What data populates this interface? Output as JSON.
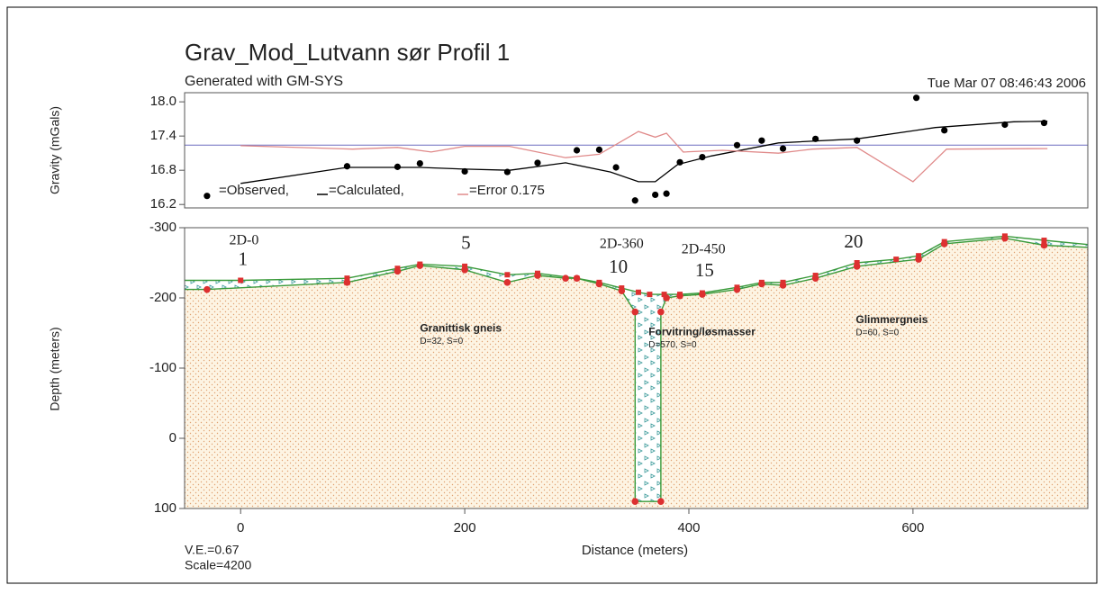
{
  "chart_data": [
    {
      "type": "line",
      "title": "Grav_Mod_Lutvann sør Profil 1",
      "subtitle": "Generated with GM-SYS",
      "date": "Tue Mar 07 08:46:43 2006",
      "ylabel": "Gravity (mGals)",
      "xlim": [
        -50,
        756
      ],
      "ylim": [
        16.14,
        18.16
      ],
      "yticks": [
        16.2,
        16.8,
        17.4,
        {
          "value": 18,
          "label": "18.0"
        }
      ],
      "reference_line": {
        "value": 17.24,
        "color": "#6f6fc0"
      },
      "series": [
        {
          "name": "=Observed,",
          "color": "#000000",
          "style": "markers",
          "x": [
            -30,
            95,
            140,
            160,
            200,
            238,
            265,
            300,
            320,
            335,
            352,
            370,
            380,
            392,
            412,
            443,
            465,
            484,
            513,
            550,
            603,
            628,
            682,
            717
          ],
          "values": [
            16.35,
            16.87,
            16.86,
            16.92,
            16.78,
            16.77,
            16.93,
            17.15,
            17.16,
            16.85,
            16.27,
            16.37,
            16.39,
            16.94,
            17.03,
            17.24,
            17.32,
            17.18,
            17.35,
            17.32,
            18.07,
            17.5,
            17.6,
            17.63
          ]
        },
        {
          "name": "=Calculated,",
          "color": "#000000",
          "style": "line",
          "x": [
            0,
            95,
            160,
            200,
            240,
            290,
            330,
            355,
            370,
            390,
            420,
            480,
            550,
            620,
            690,
            720
          ],
          "values": [
            16.57,
            16.85,
            16.85,
            16.82,
            16.8,
            16.93,
            16.77,
            16.6,
            16.6,
            16.9,
            17.05,
            17.28,
            17.35,
            17.55,
            17.65,
            17.66
          ]
        },
        {
          "name": "=Error 0.175",
          "color": "#e08a8a",
          "style": "line",
          "x": [
            0,
            100,
            140,
            170,
            200,
            240,
            290,
            320,
            355,
            370,
            380,
            395,
            430,
            480,
            510,
            550,
            600,
            630,
            720
          ],
          "values": [
            17.23,
            17.17,
            17.2,
            17.12,
            17.22,
            17.22,
            17.02,
            17.08,
            17.48,
            17.38,
            17.45,
            17.12,
            17.15,
            17.1,
            17.17,
            17.2,
            16.6,
            17.17,
            17.18
          ]
        }
      ]
    },
    {
      "type": "cross-section",
      "ylabel": "Depth (meters)",
      "xlabel": "Distance (meters)",
      "notes": [
        "V.E.=0.67",
        "Scale=4200"
      ],
      "xlim": [
        -50,
        756
      ],
      "ylim": [
        100,
        -300
      ],
      "xticks": [
        0,
        200,
        400,
        600
      ],
      "yticks": [
        100,
        0,
        -100,
        -200,
        -300
      ],
      "line_color": "#3a9a3a",
      "marker_color": "#dd3030",
      "layer_top": {
        "x": [
          -50,
          0,
          95,
          140,
          160,
          200,
          238,
          265,
          300,
          320,
          340,
          355,
          365,
          378,
          392,
          412,
          443,
          465,
          484,
          513,
          550,
          585,
          605,
          628,
          682,
          717,
          756
        ],
        "values": [
          -225,
          -225,
          -228,
          -242,
          -248,
          -245,
          -233,
          -235,
          -228,
          -222,
          -214,
          -208,
          -205,
          -205,
          -205,
          -207,
          -215,
          -222,
          -222,
          -232,
          -250,
          -255,
          -260,
          -280,
          -288,
          -282,
          -276
        ]
      },
      "layer_base": {
        "x": [
          -50,
          -30,
          95,
          140,
          160,
          200,
          238,
          265,
          290,
          300,
          320,
          340,
          352,
          352,
          375,
          375,
          380,
          392,
          412,
          443,
          465,
          484,
          513,
          550,
          605,
          628,
          682,
          717,
          756
        ],
        "values": [
          -212,
          -212,
          -222,
          -238,
          -246,
          -240,
          -222,
          -232,
          -228,
          -228,
          -220,
          -210,
          -180,
          90,
          90,
          -180,
          -200,
          -203,
          -205,
          -212,
          -220,
          -218,
          -228,
          -245,
          -255,
          -277,
          -285,
          -275,
          -272
        ]
      },
      "bodies": [
        {
          "name": "Granittisk gneis",
          "parameters": "D=32, S=0",
          "x": 160,
          "y": -156
        },
        {
          "name": "Forvitring/løsmasser",
          "parameters": "D=570, S=0",
          "x": 364,
          "y": -151
        },
        {
          "name": "Glimmergneis",
          "parameters": "D=60, S=0",
          "x": 549,
          "y": -168
        }
      ],
      "annotations": [
        {
          "text": "2D-0",
          "x": 3,
          "y": -281
        },
        {
          "text": "1",
          "x": 2,
          "y": -253
        },
        {
          "text": "5",
          "x": 201,
          "y": -276
        },
        {
          "text": "2D-360",
          "x": 340,
          "y": -276
        },
        {
          "text": "10",
          "x": 337,
          "y": -242
        },
        {
          "text": "2D-450",
          "x": 413,
          "y": -268
        },
        {
          "text": "15",
          "x": 414,
          "y": -237
        },
        {
          "text": "20",
          "x": 547,
          "y": -278
        }
      ]
    }
  ]
}
